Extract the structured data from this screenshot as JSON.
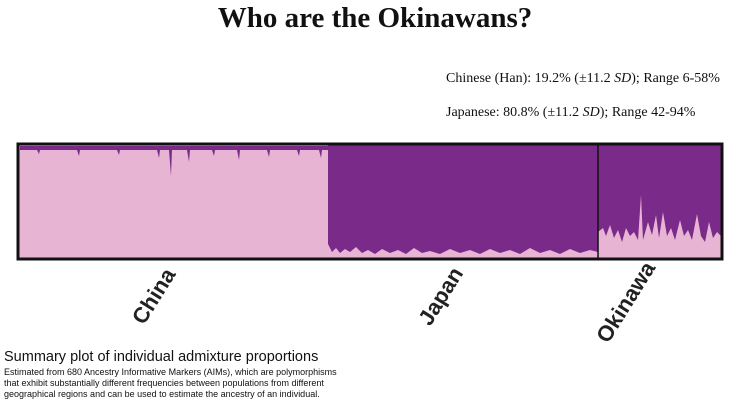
{
  "header": {
    "title": "Who are the Okinawans?"
  },
  "stats": [
    {
      "lead": "Chinese (Han): 19.2% (±11.2 ",
      "em": "SD",
      "tail": "); Range 6-58%"
    },
    {
      "lead": "Japanese: 80.8% (±11.2 ",
      "em": "SD",
      "tail": "); Range 42-94%"
    }
  ],
  "plot": {
    "groups": [
      "China",
      "Japan",
      "Okinawa"
    ]
  },
  "caption": {
    "title": "Summary plot of individual admixture proportions",
    "lines": [
      "Estimated from 680 Ancestry Informative Markers (AIMs), which are polymorphisms",
      "that exhibit substantially different frequencies between populations from different",
      "geographical regions and can be used to estimate the ancestry of an individual."
    ]
  }
}
